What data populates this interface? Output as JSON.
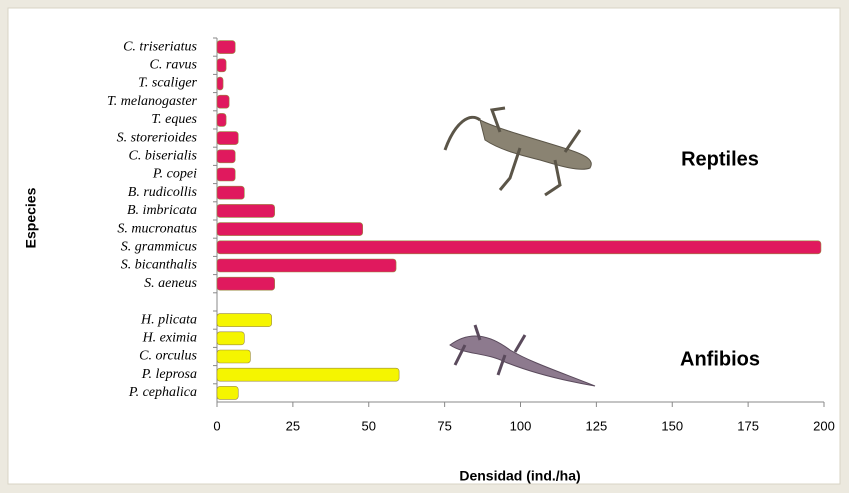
{
  "chart_data": {
    "type": "barh",
    "x_label": "Densidad (ind./ha)",
    "y_label": "Especies",
    "categories": [
      "C. triseriatus",
      "C. ravus",
      "T. scaliger",
      "T. melanogaster",
      "T. eques",
      "S. storerioides",
      "C. biserialis",
      "P. copei",
      "B. rudicollis",
      "B. imbricata",
      "S. mucronatus",
      "S. grammicus",
      "S. bicanthalis",
      "S. aeneus",
      null,
      "H. plicata",
      "H. eximia",
      "C. orculus",
      "P. leprosa",
      "P. cephalica"
    ],
    "series": [
      {
        "name": "Reptiles",
        "color": "#e0195e",
        "values": [
          6,
          3,
          2,
          4,
          3,
          7,
          6,
          6,
          9,
          19,
          48,
          199,
          59,
          19,
          null,
          null,
          null,
          null,
          null,
          null
        ]
      },
      {
        "name": "Anfibios",
        "color": "#f5f500",
        "values": [
          null,
          null,
          null,
          null,
          null,
          null,
          null,
          null,
          null,
          null,
          null,
          null,
          null,
          null,
          null,
          18,
          9,
          11,
          60,
          7
        ]
      }
    ],
    "xlim": [
      0,
      200
    ],
    "xticks": [
      0,
      25,
      50,
      75,
      100,
      125,
      150,
      175,
      200
    ]
  }
}
